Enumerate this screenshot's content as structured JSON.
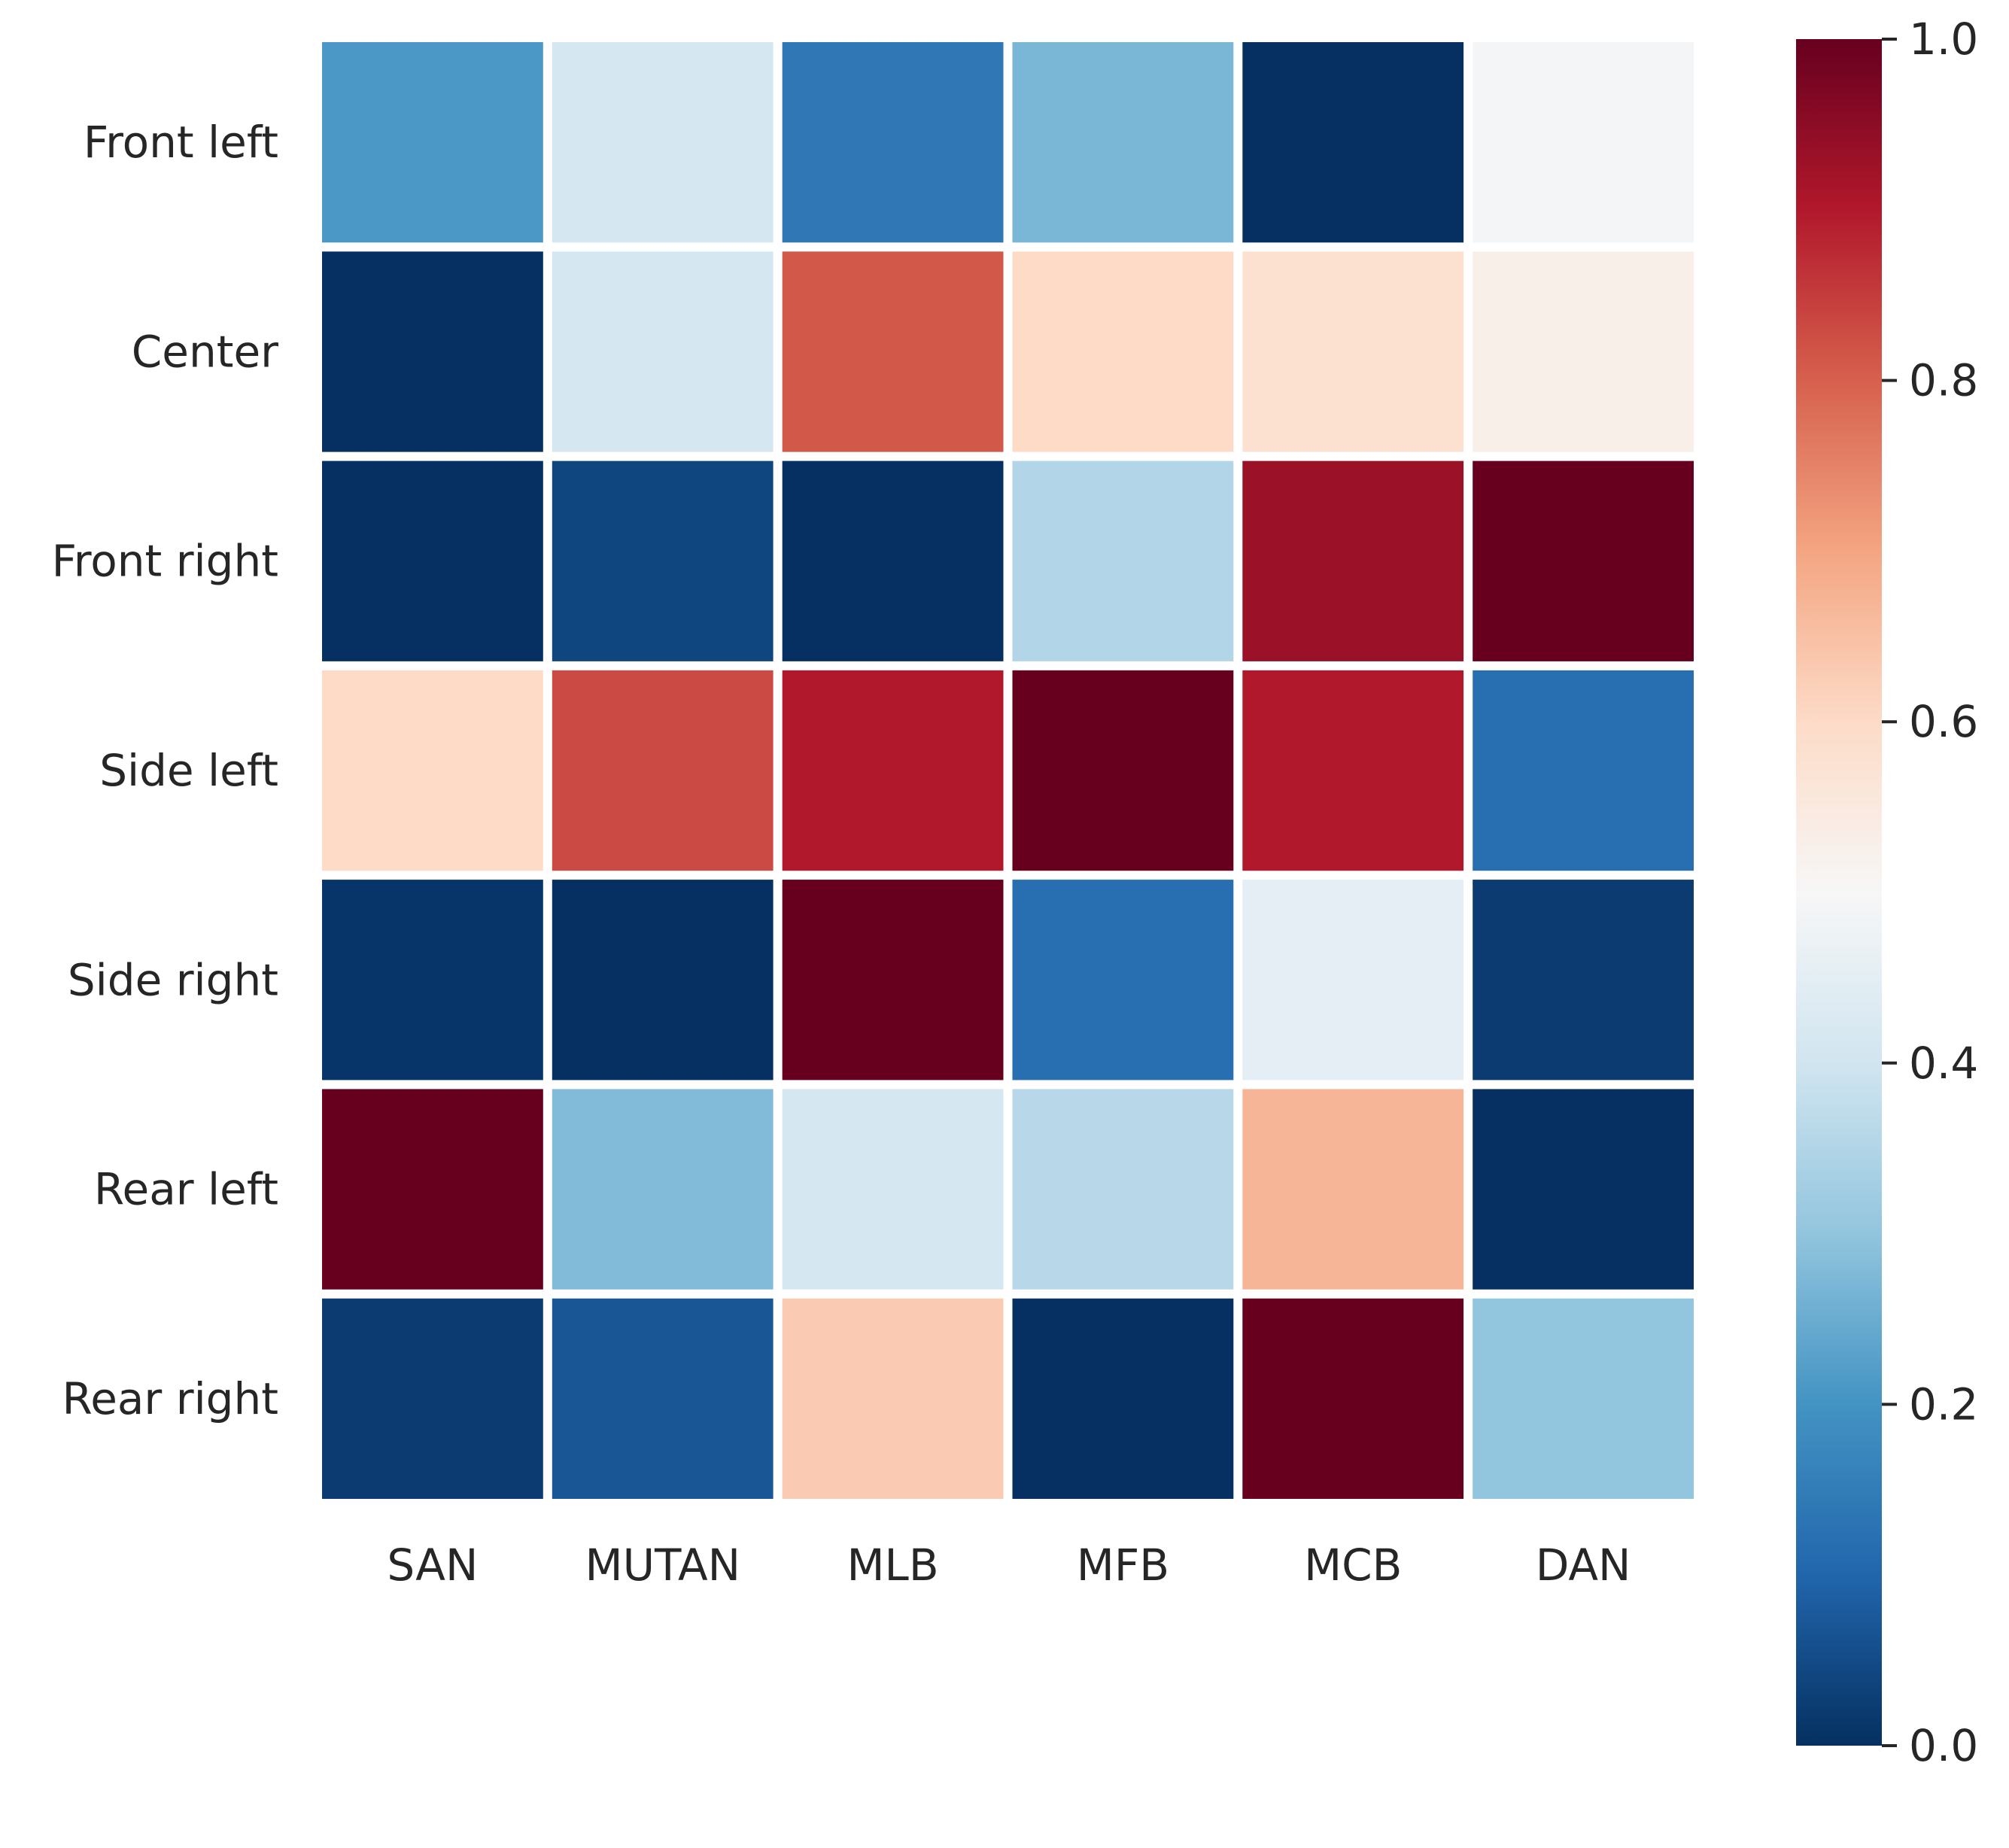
{
  "chart_data": {
    "type": "heatmap",
    "rows": [
      "Front left",
      "Center",
      "Front right",
      "Side left",
      "Side right",
      "Rear left",
      "Rear right"
    ],
    "columns": [
      "SAN",
      "MUTAN",
      "MLB",
      "MFB",
      "MCB",
      "DAN"
    ],
    "values": [
      [
        0.21,
        0.41,
        0.14,
        0.27,
        0.0,
        0.49
      ],
      [
        0.0,
        0.41,
        0.81,
        0.6,
        0.58,
        0.53
      ],
      [
        0.0,
        0.04,
        0.0,
        0.35,
        0.93,
        1.0
      ],
      [
        0.6,
        0.83,
        0.9,
        1.0,
        0.9,
        0.12
      ],
      [
        0.01,
        0.0,
        1.0,
        0.12,
        0.45,
        0.02
      ],
      [
        1.0,
        0.28,
        0.41,
        0.36,
        0.67,
        0.0
      ],
      [
        0.02,
        0.07,
        0.63,
        0.0,
        1.0,
        0.3
      ]
    ],
    "colorbar": {
      "min": 0.0,
      "max": 1.0,
      "ticks": [
        "0.0",
        "0.2",
        "0.4",
        "0.6",
        "0.8",
        "1.0"
      ],
      "colormap": "RdBu_r",
      "stops": [
        "#053061",
        "#2166ac",
        "#4393c3",
        "#92c5de",
        "#d1e5f0",
        "#f7f7f7",
        "#fddbc7",
        "#f4a582",
        "#d6604d",
        "#b2182b",
        "#67001f"
      ]
    },
    "grid": false,
    "cell_separator_color": "#ffffff"
  }
}
